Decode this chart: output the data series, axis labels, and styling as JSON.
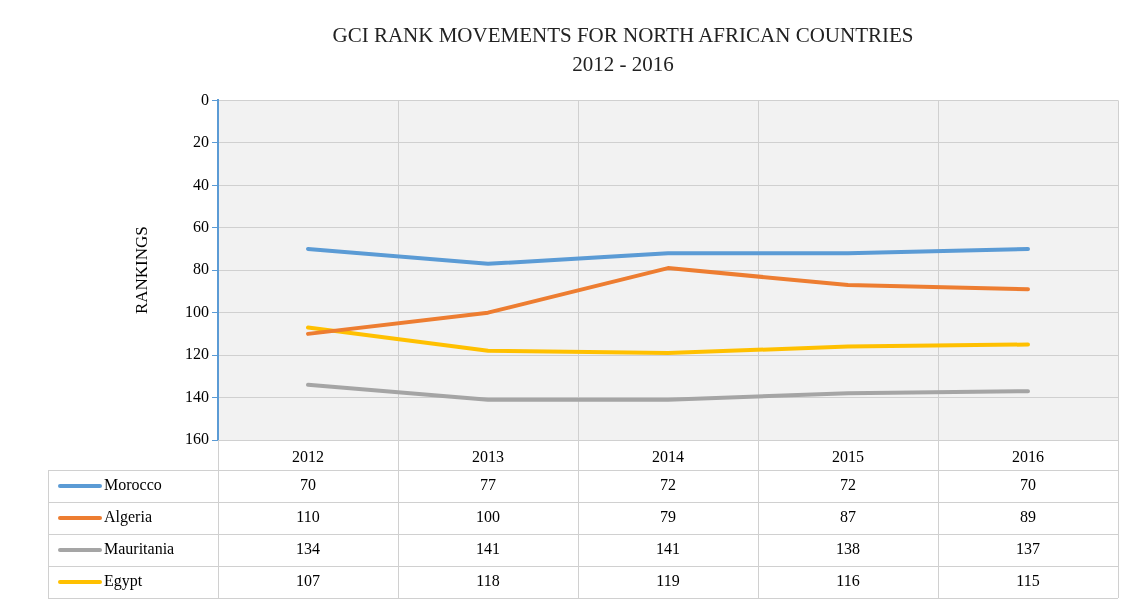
{
  "chart_data": {
    "type": "line",
    "title": "GCI RANK MOVEMENTS FOR NORTH AFRICAN COUNTRIES",
    "subtitle": "2012 - 2016",
    "ylabel": "RANKINGS",
    "categories": [
      "2012",
      "2013",
      "2014",
      "2015",
      "2016"
    ],
    "series": [
      {
        "name": "Morocco",
        "color": "#5b9bd5",
        "values": [
          70,
          77,
          72,
          72,
          70
        ]
      },
      {
        "name": "Algeria",
        "color": "#ed7d31",
        "values": [
          110,
          100,
          79,
          87,
          89
        ]
      },
      {
        "name": "Mauritania",
        "color": "#a5a5a5",
        "values": [
          134,
          141,
          141,
          138,
          137
        ]
      },
      {
        "name": "Egypt",
        "color": "#ffc000",
        "values": [
          107,
          118,
          119,
          116,
          115
        ]
      }
    ],
    "ylim": [
      160,
      0
    ],
    "yticks": [
      0,
      20,
      40,
      60,
      80,
      100,
      120,
      140,
      160
    ],
    "grid": true,
    "legend": "bottom",
    "data_labels": true,
    "marker": "none",
    "line_style": "solid"
  }
}
